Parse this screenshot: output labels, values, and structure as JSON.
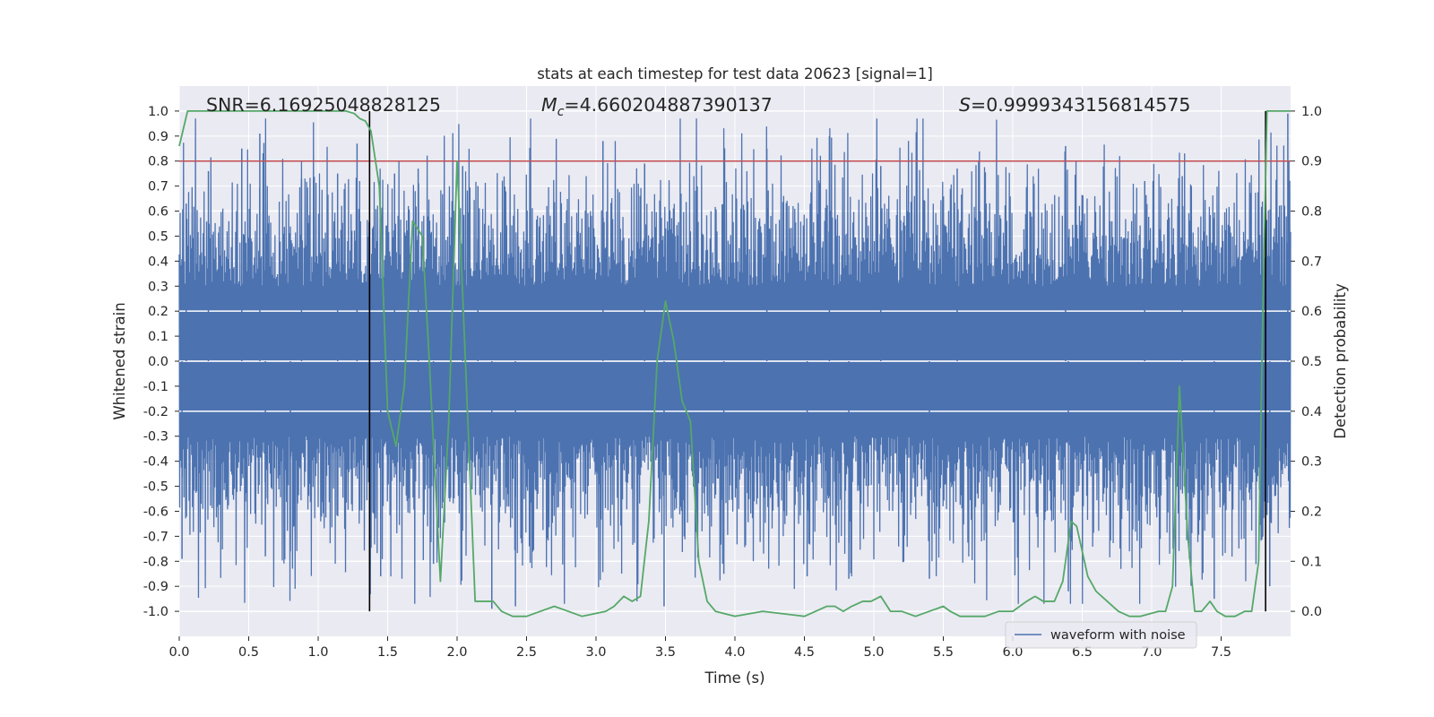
{
  "chart_data": {
    "type": "line",
    "title": "stats at each timestep for test data 20623 [signal=1]",
    "xlabel": "Time (s)",
    "ylabel": "Whitened strain",
    "ylabel_right": "Detection probability",
    "xlim": [
      0.0,
      8.0
    ],
    "ylim": [
      -1.1,
      1.1
    ],
    "ylim_right": [
      -0.05,
      1.05
    ],
    "x_ticks": [
      0.0,
      0.5,
      1.0,
      1.5,
      2.0,
      2.5,
      3.0,
      3.5,
      4.0,
      4.5,
      5.0,
      5.5,
      6.0,
      6.5,
      7.0,
      7.5
    ],
    "x_tick_labels": [
      "0.0",
      "0.5",
      "1.0",
      "1.5",
      "2.0",
      "2.5",
      "3.0",
      "3.5",
      "4.0",
      "4.5",
      "5.0",
      "5.5",
      "6.0",
      "6.5",
      "7.0",
      "7.5"
    ],
    "y_ticks": [
      1.0,
      0.9,
      0.8,
      0.7,
      0.6,
      0.5,
      0.4,
      0.3,
      0.2,
      0.1,
      0.0,
      -0.1,
      -0.2,
      -0.3,
      -0.4,
      -0.5,
      -0.6,
      -0.7,
      -0.8,
      -0.9,
      -1.0
    ],
    "y_tick_labels": [
      "1.0",
      "0.9",
      "0.8",
      "0.7",
      "0.6",
      "0.5",
      "0.4",
      "0.3",
      "0.2",
      "0.1",
      "0.0",
      "-0.1",
      "-0.2",
      "-0.3",
      "-0.4",
      "-0.5",
      "-0.6",
      "-0.7",
      "-0.8",
      "-0.9",
      "-1.0"
    ],
    "y2_ticks": [
      1.0,
      0.9,
      0.8,
      0.7,
      0.6,
      0.5,
      0.4,
      0.3,
      0.2,
      0.1,
      0.0
    ],
    "y2_tick_labels": [
      "1.0",
      "0.9",
      "0.8",
      "0.7",
      "0.6",
      "0.5",
      "0.4",
      "0.3",
      "0.2",
      "0.1",
      "0.0"
    ],
    "grid": true,
    "stats": {
      "snr": "SNR=6.16925048828125",
      "mc_symbol": "M",
      "mc_sub": "c",
      "mc_value": "=4.660204887390137",
      "s_symbol": "S",
      "s_value": "=0.9999343156814575"
    },
    "legend": {
      "label": "waveform with noise",
      "location": "lower-right"
    },
    "threshold_line": {
      "axis": "right",
      "y": 0.9,
      "color": "#c44e52"
    },
    "vertical_markers": [
      {
        "x": 1.37,
        "y_range": [
          0.0,
          1.0
        ],
        "color": "#000000"
      },
      {
        "x": 7.82,
        "y_range": [
          0.0,
          1.0
        ],
        "color": "#000000"
      }
    ],
    "series": [
      {
        "name": "waveform with noise",
        "axis": "left",
        "color": "#4c72b0",
        "description": "whitened noisy strain, dense oscillation roughly within -0.97 to 0.97",
        "spikes": [
          [
            0.02,
            -0.79
          ],
          [
            0.05,
            0.63
          ],
          [
            0.21,
            0.76
          ],
          [
            0.45,
            0.85
          ],
          [
            0.58,
            0.91
          ],
          [
            0.62,
            -0.78
          ],
          [
            0.8,
            -0.76
          ],
          [
            0.88,
            0.73
          ],
          [
            1.14,
            0.75
          ],
          [
            1.28,
            0.87
          ],
          [
            1.45,
            -0.86
          ],
          [
            1.55,
            0.75
          ],
          [
            1.72,
            0.77
          ],
          [
            1.83,
            -0.81
          ],
          [
            2.04,
            0.78
          ],
          [
            2.15,
            0.7
          ],
          [
            2.25,
            -0.99
          ],
          [
            2.42,
            -0.98
          ],
          [
            3.05,
            0.88
          ],
          [
            3.35,
            0.79
          ],
          [
            3.49,
            -0.98
          ],
          [
            3.92,
            -0.85
          ],
          [
            4.23,
            0.85
          ],
          [
            4.52,
            -0.86
          ],
          [
            4.68,
            0.9
          ],
          [
            4.82,
            -0.87
          ],
          [
            5.05,
            0.78
          ],
          [
            5.4,
            -0.87
          ],
          [
            5.6,
            0.77
          ],
          [
            6.38,
            0.86
          ],
          [
            6.4,
            -0.92
          ],
          [
            6.95,
            0.72
          ],
          [
            7.22,
            0.74
          ],
          [
            7.45,
            -0.95
          ],
          [
            7.85,
            -0.9
          ],
          [
            7.98,
            0.99
          ]
        ]
      },
      {
        "name": "Detection probability",
        "axis": "right",
        "color": "#55a868",
        "x": [
          0.0,
          0.06,
          0.12,
          0.5,
          1.0,
          1.2,
          1.26,
          1.3,
          1.34,
          1.38,
          1.44,
          1.5,
          1.56,
          1.62,
          1.68,
          1.75,
          1.8,
          1.88,
          1.94,
          2.0,
          2.06,
          2.13,
          2.2,
          2.26,
          2.32,
          2.4,
          2.5,
          2.6,
          2.7,
          2.8,
          2.9,
          3.07,
          3.13,
          3.2,
          3.26,
          3.32,
          3.38,
          3.44,
          3.5,
          3.56,
          3.62,
          3.68,
          3.74,
          3.8,
          3.86,
          4.0,
          4.2,
          4.5,
          4.66,
          4.72,
          4.78,
          4.84,
          4.92,
          4.98,
          5.05,
          5.12,
          5.2,
          5.3,
          5.4,
          5.5,
          5.55,
          5.62,
          5.7,
          5.8,
          5.9,
          6.0,
          6.1,
          6.16,
          6.22,
          6.3,
          6.36,
          6.42,
          6.46,
          6.5,
          6.54,
          6.6,
          6.68,
          6.76,
          6.84,
          6.92,
          7.05,
          7.1,
          7.15,
          7.2,
          7.26,
          7.31,
          7.36,
          7.42,
          7.47,
          7.53,
          7.6,
          7.67,
          7.72,
          7.77,
          7.8,
          7.83,
          7.87,
          7.92,
          7.96,
          8.0
        ],
        "values": [
          0.93,
          1.0,
          1.0,
          1.0,
          1.0,
          1.0,
          0.995,
          0.985,
          0.98,
          0.96,
          0.85,
          0.4,
          0.33,
          0.45,
          0.78,
          0.75,
          0.5,
          0.06,
          0.38,
          0.9,
          0.5,
          0.02,
          0.02,
          0.02,
          0.0,
          -0.01,
          -0.01,
          0.0,
          0.01,
          0.0,
          -0.01,
          0.0,
          0.01,
          0.03,
          0.02,
          0.03,
          0.18,
          0.5,
          0.62,
          0.54,
          0.42,
          0.38,
          0.1,
          0.02,
          0.0,
          -0.01,
          0.0,
          -0.01,
          0.01,
          0.01,
          0.0,
          0.01,
          0.02,
          0.02,
          0.03,
          0.0,
          0.0,
          -0.01,
          0.0,
          0.01,
          0.0,
          -0.01,
          -0.01,
          -0.01,
          0.0,
          0.0,
          0.02,
          0.03,
          0.02,
          0.02,
          0.06,
          0.18,
          0.17,
          0.12,
          0.07,
          0.04,
          0.02,
          0.0,
          -0.01,
          -0.01,
          0.0,
          0.0,
          0.05,
          0.45,
          0.15,
          0.0,
          0.0,
          0.02,
          0.0,
          -0.01,
          -0.01,
          0.0,
          0.0,
          0.1,
          0.6,
          1.0,
          1.0,
          1.0,
          1.0,
          1.0
        ]
      }
    ]
  }
}
